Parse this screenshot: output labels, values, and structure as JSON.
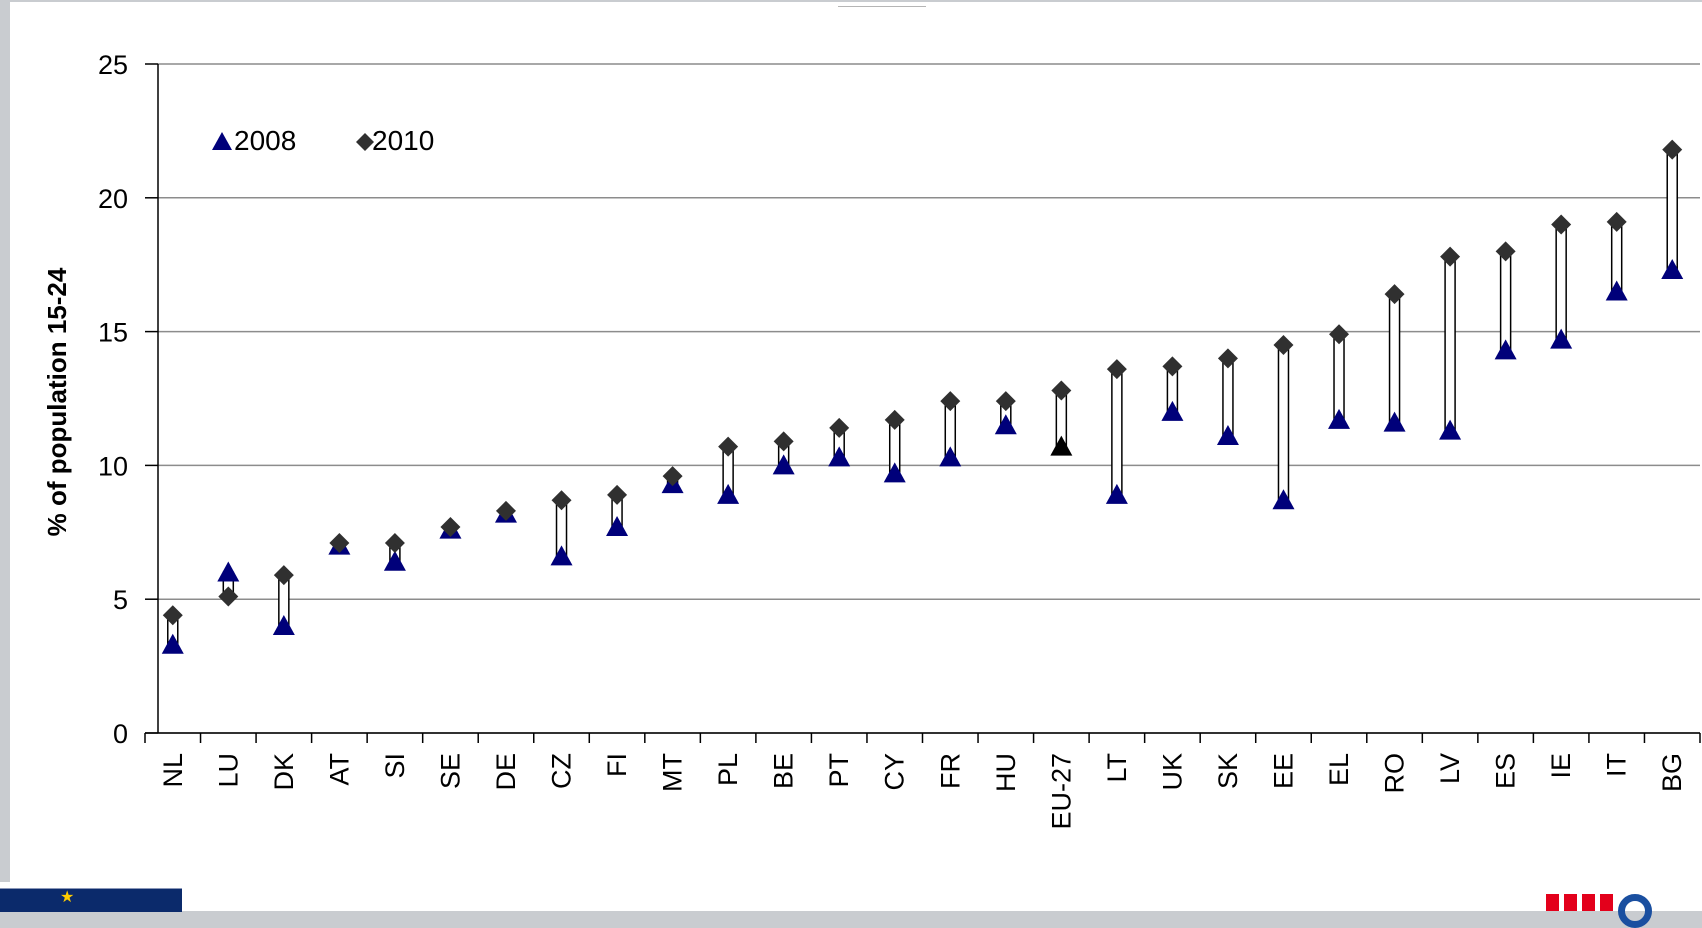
{
  "chart_data": {
    "type": "scatter",
    "ylabel": "% of population 15-24",
    "ylim": [
      0,
      25
    ],
    "yticks": [
      "0",
      "5",
      "10",
      "15",
      "20",
      "25"
    ],
    "grid": true,
    "legend_position": "top-left",
    "categories": [
      "NL",
      "LU",
      "DK",
      "AT",
      "SI",
      "SE",
      "DE",
      "CZ",
      "FI",
      "MT",
      "PL",
      "BE",
      "PT",
      "CY",
      "FR",
      "HU",
      "EU-27",
      "LT",
      "UK",
      "SK",
      "EE",
      "EL",
      "RO",
      "LV",
      "ES",
      "IE",
      "IT",
      "BG"
    ],
    "series": [
      {
        "name": "2008",
        "marker": "triangle",
        "color": "#00007a",
        "highlight_color": "#000000",
        "values": [
          3.3,
          6.0,
          4.0,
          7.0,
          6.4,
          7.6,
          8.2,
          6.6,
          7.7,
          9.3,
          8.9,
          10.0,
          10.3,
          9.7,
          10.3,
          11.5,
          10.7,
          8.9,
          12.0,
          11.1,
          8.7,
          11.7,
          11.6,
          11.3,
          14.3,
          14.7,
          16.5,
          17.3
        ]
      },
      {
        "name": "2010",
        "marker": "diamond",
        "color": "#303030",
        "values": [
          4.4,
          5.1,
          5.9,
          7.1,
          7.1,
          7.7,
          8.3,
          8.7,
          8.9,
          9.6,
          10.7,
          10.9,
          11.4,
          11.7,
          12.4,
          12.4,
          12.8,
          13.6,
          13.7,
          14.0,
          14.5,
          14.9,
          16.4,
          17.8,
          18.0,
          19.0,
          19.1,
          21.8
        ]
      }
    ]
  }
}
